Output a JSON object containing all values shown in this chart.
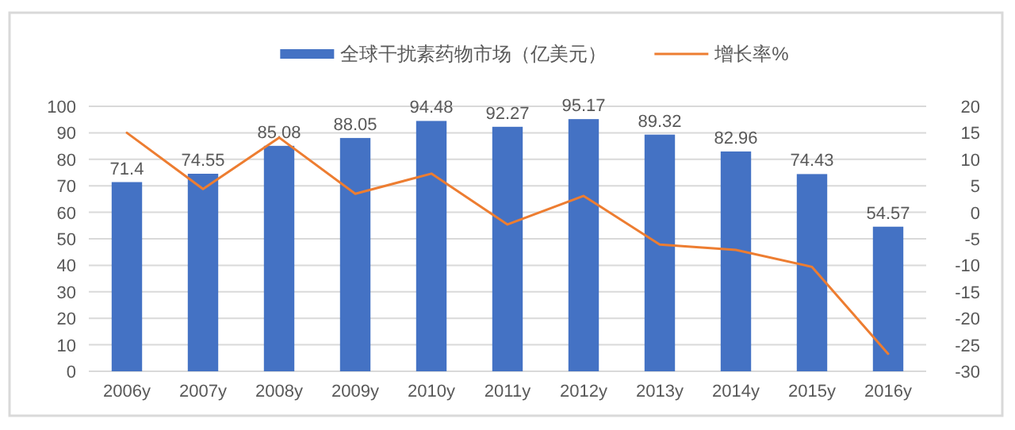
{
  "chart_data": {
    "type": "bar",
    "categories": [
      "2006y",
      "2007y",
      "2008y",
      "2009y",
      "2010y",
      "2011y",
      "2012y",
      "2013y",
      "2014y",
      "2015y",
      "2016y"
    ],
    "series": [
      {
        "name": "全球干扰素药物市场（亿美元）",
        "color": "#4472c4",
        "values": [
          71.4,
          74.55,
          85.08,
          88.05,
          94.48,
          92.27,
          95.17,
          89.32,
          82.96,
          74.43,
          54.57
        ],
        "value_labels": [
          "71.4",
          "74.55",
          "85.08",
          "88.05",
          "94.48",
          "92.27",
          "95.17",
          "89.32",
          "82.96",
          "74.43",
          "54.57"
        ]
      },
      {
        "name": "增长率%",
        "type": "line",
        "axis": "y2",
        "color": "#ed7d31",
        "values": [
          15,
          4.4,
          14.1,
          3.5,
          7.3,
          -2.3,
          3.1,
          -6.1,
          -7.1,
          -10.3,
          -26.7
        ]
      }
    ],
    "ylim": [
      0,
      100
    ],
    "yticks": [
      0,
      10,
      20,
      30,
      40,
      50,
      60,
      70,
      80,
      90,
      100
    ],
    "y2lim": [
      -30,
      20
    ],
    "y2ticks": [
      -30,
      -25,
      -20,
      -15,
      -10,
      -5,
      0,
      5,
      10,
      15,
      20
    ],
    "grid": "y",
    "legend": "top"
  }
}
